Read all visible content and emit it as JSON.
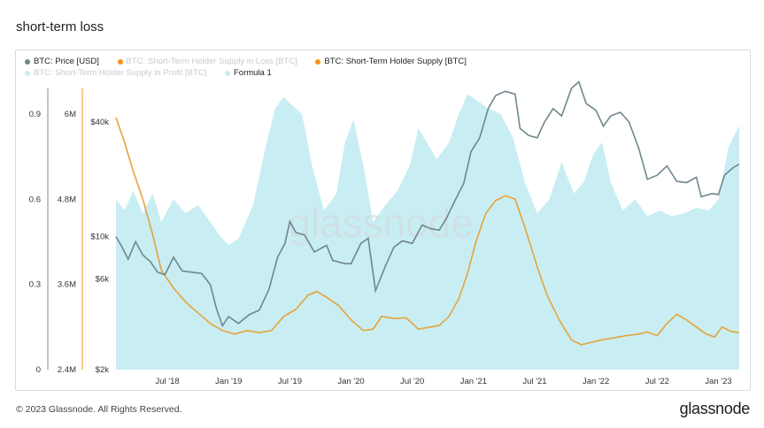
{
  "page": {
    "title": "short-term loss",
    "footer": "© 2023 Glassnode. All Rights Reserved.",
    "brand": "glassnode",
    "watermark": "glassnode"
  },
  "legend": [
    {
      "label": "BTC: Price [USD]",
      "color": "#6f878b",
      "faded": false
    },
    {
      "label": "BTC: Short-Term Holder Supply in Loss [BTC]",
      "color": "#f7931a",
      "faded": true
    },
    {
      "label": "BTC: Short-Term Holder Supply [BTC]",
      "color": "#f7931a",
      "faded": false
    },
    {
      "label": "BTC: Short-Term Holder Supply in Profit [BTC]",
      "color": "#c8eef3",
      "faded": true
    },
    {
      "label": "Formula 1",
      "color": "#c8eef3",
      "faded": false
    }
  ],
  "chart_data": {
    "type": "line",
    "title": "short-term loss",
    "x_range": [
      2018.08,
      2023.17
    ],
    "x_ticks": [
      {
        "label": "Jul '18",
        "t": 2018.5
      },
      {
        "label": "Jan '19",
        "t": 2019.0
      },
      {
        "label": "Jul '19",
        "t": 2019.5
      },
      {
        "label": "Jan '20",
        "t": 2020.0
      },
      {
        "label": "Jul '20",
        "t": 2020.5
      },
      {
        "label": "Jan '21",
        "t": 2021.0
      },
      {
        "label": "Jul '21",
        "t": 2021.5
      },
      {
        "label": "Jan '22",
        "t": 2022.0
      },
      {
        "label": "Jul '22",
        "t": 2022.5
      },
      {
        "label": "Jan '23",
        "t": 2023.0
      }
    ],
    "axes": {
      "formula": {
        "ticks": [
          "0.9",
          "0.6",
          "0.3",
          "0"
        ],
        "values": [
          0.9,
          0.6,
          0.3,
          0
        ],
        "range": [
          0,
          0.99
        ]
      },
      "supply": {
        "ticks": [
          "6M",
          "4.8M",
          "3.6M",
          "2.4M"
        ],
        "values": [
          6000000,
          4800000,
          3600000,
          2400000
        ],
        "range": [
          2400000,
          6360000
        ]
      },
      "price": {
        "ticks": [
          "$40k",
          "$10k",
          "$6k",
          "$2k"
        ],
        "values": [
          40000,
          10000,
          6000,
          2000
        ],
        "scale": "log",
        "range": [
          2000,
          60000
        ]
      }
    },
    "series": [
      {
        "name": "Formula 1",
        "axis": "formula",
        "style": "area",
        "color": "#c8eef3",
        "points": [
          [
            2018.08,
            0.6
          ],
          [
            2018.15,
            0.56
          ],
          [
            2018.22,
            0.63
          ],
          [
            2018.3,
            0.55
          ],
          [
            2018.38,
            0.62
          ],
          [
            2018.45,
            0.52
          ],
          [
            2018.55,
            0.6
          ],
          [
            2018.65,
            0.55
          ],
          [
            2018.75,
            0.58
          ],
          [
            2018.85,
            0.52
          ],
          [
            2018.93,
            0.47
          ],
          [
            2019.0,
            0.44
          ],
          [
            2019.08,
            0.46
          ],
          [
            2019.2,
            0.58
          ],
          [
            2019.3,
            0.78
          ],
          [
            2019.38,
            0.92
          ],
          [
            2019.45,
            0.96
          ],
          [
            2019.52,
            0.93
          ],
          [
            2019.6,
            0.9
          ],
          [
            2019.68,
            0.72
          ],
          [
            2019.78,
            0.56
          ],
          [
            2019.88,
            0.62
          ],
          [
            2019.95,
            0.8
          ],
          [
            2020.02,
            0.88
          ],
          [
            2020.1,
            0.72
          ],
          [
            2020.18,
            0.52
          ],
          [
            2020.28,
            0.58
          ],
          [
            2020.38,
            0.63
          ],
          [
            2020.48,
            0.72
          ],
          [
            2020.55,
            0.85
          ],
          [
            2020.62,
            0.8
          ],
          [
            2020.7,
            0.74
          ],
          [
            2020.8,
            0.8
          ],
          [
            2020.88,
            0.9
          ],
          [
            2020.95,
            0.97
          ],
          [
            2021.02,
            0.95
          ],
          [
            2021.12,
            0.92
          ],
          [
            2021.22,
            0.9
          ],
          [
            2021.32,
            0.82
          ],
          [
            2021.42,
            0.66
          ],
          [
            2021.52,
            0.55
          ],
          [
            2021.62,
            0.6
          ],
          [
            2021.72,
            0.73
          ],
          [
            2021.82,
            0.62
          ],
          [
            2021.9,
            0.66
          ],
          [
            2021.98,
            0.76
          ],
          [
            2022.05,
            0.8
          ],
          [
            2022.12,
            0.66
          ],
          [
            2022.22,
            0.56
          ],
          [
            2022.32,
            0.6
          ],
          [
            2022.42,
            0.54
          ],
          [
            2022.52,
            0.56
          ],
          [
            2022.62,
            0.54
          ],
          [
            2022.72,
            0.55
          ],
          [
            2022.82,
            0.57
          ],
          [
            2022.92,
            0.56
          ],
          [
            2023.0,
            0.6
          ],
          [
            2023.08,
            0.78
          ],
          [
            2023.17,
            0.86
          ]
        ]
      },
      {
        "name": "BTC: Short-Term Holder Supply [BTC]",
        "axis": "supply",
        "style": "line",
        "color": "#e8a23a",
        "points": [
          [
            2018.08,
            5.95
          ],
          [
            2018.15,
            5.6
          ],
          [
            2018.22,
            5.2
          ],
          [
            2018.3,
            4.8
          ],
          [
            2018.38,
            4.3
          ],
          [
            2018.45,
            3.8
          ],
          [
            2018.55,
            3.55
          ],
          [
            2018.65,
            3.35
          ],
          [
            2018.75,
            3.2
          ],
          [
            2018.85,
            3.05
          ],
          [
            2018.95,
            2.95
          ],
          [
            2019.05,
            2.9
          ],
          [
            2019.15,
            2.95
          ],
          [
            2019.25,
            2.92
          ],
          [
            2019.35,
            2.95
          ],
          [
            2019.45,
            3.15
          ],
          [
            2019.55,
            3.25
          ],
          [
            2019.65,
            3.45
          ],
          [
            2019.72,
            3.5
          ],
          [
            2019.8,
            3.42
          ],
          [
            2019.9,
            3.3
          ],
          [
            2020.0,
            3.1
          ],
          [
            2020.1,
            2.95
          ],
          [
            2020.18,
            2.97
          ],
          [
            2020.25,
            3.15
          ],
          [
            2020.35,
            3.12
          ],
          [
            2020.45,
            3.13
          ],
          [
            2020.55,
            2.97
          ],
          [
            2020.65,
            3.0
          ],
          [
            2020.72,
            3.02
          ],
          [
            2020.8,
            3.15
          ],
          [
            2020.88,
            3.4
          ],
          [
            2020.95,
            3.75
          ],
          [
            2021.02,
            4.2
          ],
          [
            2021.1,
            4.6
          ],
          [
            2021.18,
            4.78
          ],
          [
            2021.26,
            4.85
          ],
          [
            2021.34,
            4.8
          ],
          [
            2021.42,
            4.4
          ],
          [
            2021.52,
            3.85
          ],
          [
            2021.6,
            3.45
          ],
          [
            2021.7,
            3.1
          ],
          [
            2021.8,
            2.82
          ],
          [
            2021.88,
            2.75
          ],
          [
            2021.95,
            2.78
          ],
          [
            2022.05,
            2.82
          ],
          [
            2022.15,
            2.85
          ],
          [
            2022.25,
            2.88
          ],
          [
            2022.35,
            2.9
          ],
          [
            2022.42,
            2.93
          ],
          [
            2022.5,
            2.88
          ],
          [
            2022.58,
            3.05
          ],
          [
            2022.66,
            3.18
          ],
          [
            2022.74,
            3.1
          ],
          [
            2022.82,
            3.0
          ],
          [
            2022.9,
            2.9
          ],
          [
            2022.97,
            2.86
          ],
          [
            2023.03,
            3.0
          ],
          [
            2023.1,
            2.94
          ],
          [
            2023.17,
            2.92
          ]
        ]
      },
      {
        "name": "BTC: Price [USD]",
        "axis": "price",
        "style": "line",
        "color": "#6f878b",
        "points": [
          [
            2018.08,
            10000
          ],
          [
            2018.13,
            8800
          ],
          [
            2018.18,
            7600
          ],
          [
            2018.24,
            9400
          ],
          [
            2018.3,
            8000
          ],
          [
            2018.36,
            7400
          ],
          [
            2018.42,
            6500
          ],
          [
            2018.48,
            6300
          ],
          [
            2018.55,
            7800
          ],
          [
            2018.62,
            6600
          ],
          [
            2018.7,
            6500
          ],
          [
            2018.78,
            6400
          ],
          [
            2018.85,
            5600
          ],
          [
            2018.9,
            4200
          ],
          [
            2018.95,
            3400
          ],
          [
            2019.0,
            3800
          ],
          [
            2019.08,
            3500
          ],
          [
            2019.17,
            3900
          ],
          [
            2019.25,
            4100
          ],
          [
            2019.33,
            5300
          ],
          [
            2019.4,
            7800
          ],
          [
            2019.46,
            9200
          ],
          [
            2019.5,
            12000
          ],
          [
            2019.55,
            10500
          ],
          [
            2019.62,
            10200
          ],
          [
            2019.7,
            8300
          ],
          [
            2019.8,
            9000
          ],
          [
            2019.85,
            7500
          ],
          [
            2019.95,
            7200
          ],
          [
            2020.0,
            7200
          ],
          [
            2020.08,
            9200
          ],
          [
            2020.14,
            9800
          ],
          [
            2020.2,
            5200
          ],
          [
            2020.28,
            7000
          ],
          [
            2020.35,
            8800
          ],
          [
            2020.42,
            9500
          ],
          [
            2020.5,
            9200
          ],
          [
            2020.58,
            11500
          ],
          [
            2020.65,
            11000
          ],
          [
            2020.72,
            10800
          ],
          [
            2020.78,
            12500
          ],
          [
            2020.85,
            15500
          ],
          [
            2020.92,
            19000
          ],
          [
            2020.98,
            28000
          ],
          [
            2021.05,
            33000
          ],
          [
            2021.12,
            47000
          ],
          [
            2021.18,
            55000
          ],
          [
            2021.26,
            58000
          ],
          [
            2021.34,
            56000
          ],
          [
            2021.38,
            37000
          ],
          [
            2021.45,
            34000
          ],
          [
            2021.52,
            33000
          ],
          [
            2021.58,
            40000
          ],
          [
            2021.65,
            47000
          ],
          [
            2021.72,
            43000
          ],
          [
            2021.8,
            60000
          ],
          [
            2021.86,
            65000
          ],
          [
            2021.92,
            50000
          ],
          [
            2022.0,
            46000
          ],
          [
            2022.06,
            38000
          ],
          [
            2022.12,
            43000
          ],
          [
            2022.2,
            45000
          ],
          [
            2022.27,
            40000
          ],
          [
            2022.35,
            29000
          ],
          [
            2022.42,
            20000
          ],
          [
            2022.5,
            21000
          ],
          [
            2022.58,
            23500
          ],
          [
            2022.66,
            19500
          ],
          [
            2022.74,
            19200
          ],
          [
            2022.82,
            20500
          ],
          [
            2022.86,
            16200
          ],
          [
            2022.95,
            16800
          ],
          [
            2023.0,
            16600
          ],
          [
            2023.05,
            21000
          ],
          [
            2023.12,
            23000
          ],
          [
            2023.17,
            24000
          ]
        ]
      }
    ]
  }
}
